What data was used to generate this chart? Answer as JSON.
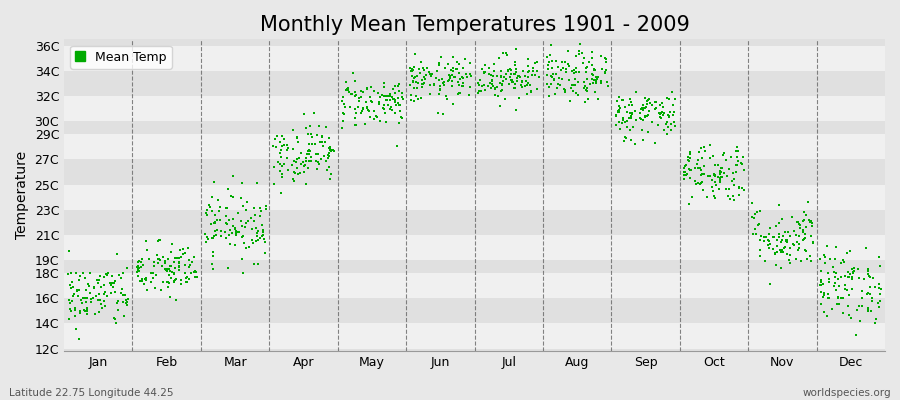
{
  "title": "Monthly Mean Temperatures 1901 - 2009",
  "ylabel": "Temperature",
  "subtitle_left": "Latitude 22.75 Longitude 44.25",
  "subtitle_right": "worldspecies.org",
  "legend_label": "Mean Temp",
  "shown_yticks": [
    12,
    14,
    16,
    18,
    19,
    21,
    23,
    25,
    27,
    29,
    30,
    32,
    34,
    36
  ],
  "ylim": [
    11.8,
    36.5
  ],
  "month_names": [
    "Jan",
    "Feb",
    "Mar",
    "Apr",
    "May",
    "Jun",
    "Jul",
    "Aug",
    "Sep",
    "Oct",
    "Nov",
    "Dec"
  ],
  "monthly_mean": [
    16.2,
    18.2,
    21.8,
    27.5,
    31.5,
    33.2,
    33.5,
    33.5,
    30.5,
    26.0,
    20.8,
    17.0
  ],
  "monthly_std": [
    1.3,
    1.1,
    1.4,
    1.2,
    1.0,
    0.9,
    0.9,
    1.0,
    1.0,
    1.2,
    1.3,
    1.5
  ],
  "n_years": 109,
  "marker_color": "#00aa00",
  "marker_size": 3.5,
  "bg_color": "#e8e8e8",
  "band_light": "#f0f0f0",
  "band_dark": "#e0e0e0",
  "grid_color": "#666666",
  "title_fontsize": 15,
  "axis_fontsize": 10,
  "tick_fontsize": 9
}
